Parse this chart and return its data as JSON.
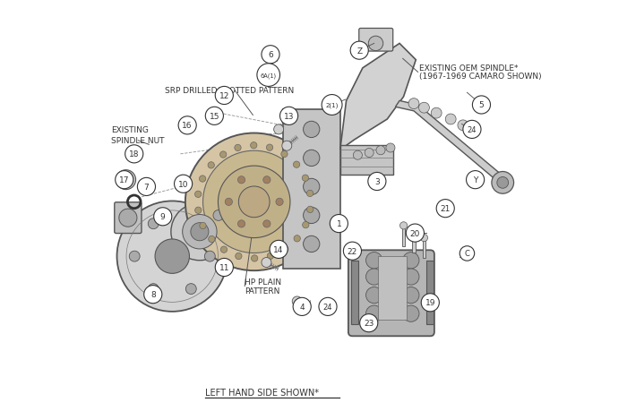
{
  "title": "",
  "bg_color": "#ffffff",
  "line_color": "#555555",
  "dark_color": "#333333",
  "light_gray": "#aaaaaa",
  "medium_gray": "#888888",
  "callout_bg": "#ffffff",
  "callout_border": "#333333",
  "labels": {
    "top_left_line1": "EXISTING",
    "top_left_line2": "SPINDLE NUT",
    "srp_label": "SRP DRILLED/SLOTTED PATTERN",
    "hp_label_line1": "HP PLAIN",
    "hp_label_line2": "PATTERN",
    "oem_line1": "EXISTING OEM SPINDLE*",
    "oem_line2": "(1967-1969 CAMARO SHOWN)",
    "bottom_label": "LEFT HAND SIDE SHOWN*"
  },
  "figsize": [
    7.0,
    4.6
  ],
  "dpi": 100
}
